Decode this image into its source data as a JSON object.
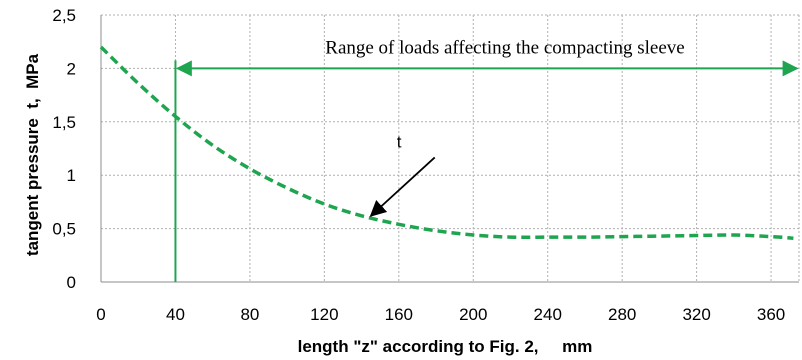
{
  "chart_data": {
    "type": "line",
    "xlabel": "length \"z\" according to Fig. 2,     mm",
    "ylabel": "tangent pressure  t,  MPa",
    "xlim": [
      0,
      375
    ],
    "ylim": [
      0,
      2.5
    ],
    "x_ticks": [
      0,
      40,
      80,
      120,
      160,
      200,
      240,
      280,
      320,
      360
    ],
    "x_tick_labels": [
      "0",
      "40",
      "80",
      "120",
      "160",
      "200",
      "240",
      "280",
      "320",
      "360"
    ],
    "y_ticks": [
      0,
      0.5,
      1,
      1.5,
      2,
      2.5
    ],
    "y_tick_labels": [
      "0",
      "0,5",
      "1",
      "1,5",
      "2",
      "2,5"
    ],
    "grid": "dotted",
    "series": [
      {
        "name": "t",
        "color": "#1fa550",
        "style": "dashed",
        "x": [
          0,
          20,
          40,
          60,
          80,
          100,
          120,
          140,
          160,
          180,
          200,
          220,
          240,
          260,
          280,
          300,
          320,
          340,
          360,
          372
        ],
        "y": [
          2.2,
          1.86,
          1.55,
          1.28,
          1.06,
          0.88,
          0.73,
          0.62,
          0.54,
          0.48,
          0.44,
          0.42,
          0.42,
          0.42,
          0.425,
          0.43,
          0.435,
          0.44,
          0.425,
          0.41
        ]
      }
    ],
    "annotations": {
      "range_text": "Range of loads affecting the compacting sleeve",
      "range_start_x": 40,
      "range_arrow_y": 2.0,
      "range_color": "#1fa550",
      "series_label": "t",
      "series_label_at": [
        145,
        0.62
      ],
      "series_label_text_at": [
        175,
        1.26
      ]
    }
  }
}
